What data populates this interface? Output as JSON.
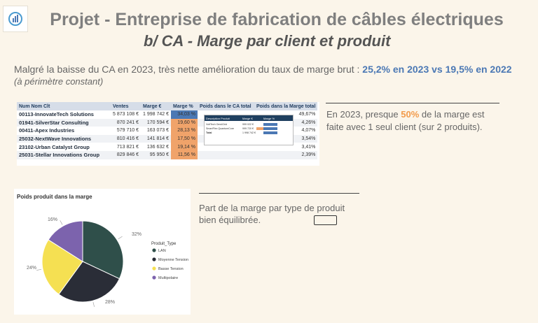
{
  "header": {
    "title_line1": "Projet  - Entreprise de fabrication de câbles électriques",
    "title_line2": "b/ CA - Marge par client et produit"
  },
  "intro": {
    "text": "Malgré la baisse du CA en 2023, très nette amélioration du taux de marge brut : ",
    "highlight": "25,2% en 2023 vs 19,5% en 2022",
    "note": "(à périmètre constant)"
  },
  "table": {
    "columns": [
      "Num Nom Clt",
      "Ventes",
      "Marge €",
      "Marge %",
      "Poids dans le CA total",
      "Poids dans la Marge total"
    ],
    "rows": [
      {
        "name": "00113-InnovateTech Solutions",
        "sales": "5 873 108 €",
        "margin": "1 998 742 €",
        "pct": "34,03 %",
        "weight_margin": "49,67%"
      },
      {
        "name": "01941-SilverStar Consulting",
        "sales": "870 241 €",
        "margin": "170 594 €",
        "pct": "19,60 %",
        "weight_margin": "4,26%"
      },
      {
        "name": "00411-Apex Industries",
        "sales": "579 710 €",
        "margin": "163 073 €",
        "pct": "28,13 %",
        "weight_margin": "4,07%"
      },
      {
        "name": "25032-NextWave Innovations",
        "sales": "810 416 €",
        "margin": "141 814 €",
        "pct": "17,50 %",
        "weight_margin": "3,54%"
      },
      {
        "name": "23102-Urban Catalyst Group",
        "sales": "713 821 €",
        "margin": "136 632 €",
        "pct": "19,14 %",
        "weight_margin": "3,41%"
      },
      {
        "name": "25031-Stellar Innovations Group",
        "sales": "829 846 €",
        "margin": "95 950 €",
        "pct": "11,56 %",
        "weight_margin": "2,39%"
      }
    ],
    "pct_colors": [
      "#4b78b4",
      "#f0a36a",
      "#f0a36a",
      "#f0a36a",
      "#f0a36a",
      "#f0a36a"
    ],
    "mini_table": {
      "headers": [
        "Description Produit",
        "Marge €",
        "Marge %"
      ],
      "rows": [
        {
          "label": "VoltTech OmniGrid",
          "value": "999 022 €"
        },
        {
          "label": "SmartFlex QuantumCore",
          "value": "999 720 €"
        },
        {
          "label": "Total",
          "value": "1 998 742 €"
        }
      ]
    }
  },
  "callout1": {
    "line1_pre": "En 2023, presque ",
    "line1_bold": "50%",
    "line1_post": " de la marge est",
    "line2": "faite avec 1 seul client (sur 2 produits)."
  },
  "callout2": {
    "line1": "Part de la marge par type de produit",
    "line2": "bien équilibrée."
  },
  "chart_data": {
    "type": "pie",
    "title": "Poids produit dans la marge",
    "legend_title": "Produit_Type",
    "legend_placement": "right",
    "slices": [
      {
        "name": "LAN",
        "value": 32,
        "label": "32%",
        "color": "#2f4f4a"
      },
      {
        "name": "Moyenne Tension",
        "value": 28,
        "label": "28%",
        "color": "#2a2d37"
      },
      {
        "name": "Basse Tension",
        "value": 24,
        "label": "24%",
        "color": "#f5e052"
      },
      {
        "name": "Multipolaire",
        "value": 16,
        "label": "16%",
        "color": "#7c63ad"
      }
    ]
  }
}
